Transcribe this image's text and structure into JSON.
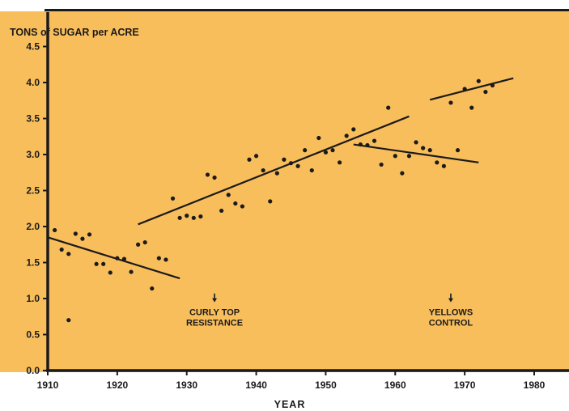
{
  "colors": {
    "plot_background": "#f9be5c",
    "ink": "#1a1a1a",
    "page": "#ffffff"
  },
  "chart_data": {
    "type": "scatter",
    "title": "",
    "xlabel": "YEAR",
    "ylabel": "TONS of SUGAR per ACRE",
    "xlim": [
      1910,
      1985
    ],
    "ylim": [
      0,
      4.8
    ],
    "xticks": [
      1910,
      1920,
      1930,
      1940,
      1950,
      1960,
      1970,
      1980
    ],
    "xtick_labels": [
      "1910",
      "1920",
      "1930",
      "1940",
      "1950",
      "1960",
      "1970",
      "1980"
    ],
    "yticks": [
      0,
      0.5,
      1.0,
      1.5,
      2.0,
      2.5,
      3.0,
      3.5,
      4.0,
      4.5
    ],
    "ytick_labels": [
      "0.0",
      "0.5",
      "1.0",
      "1.5",
      "2.0",
      "2.5",
      "3.0",
      "3.5",
      "4.0",
      "4.5"
    ],
    "grid": false,
    "series": [
      {
        "x": [
          1911,
          1912,
          1913,
          1913,
          1914,
          1915,
          1916,
          1917,
          1918,
          1919,
          1920,
          1921,
          1922,
          1923,
          1924,
          1925,
          1926,
          1927,
          1928,
          1929,
          1930,
          1931,
          1932,
          1933,
          1934,
          1935,
          1936,
          1937,
          1938,
          1939,
          1940,
          1941,
          1942,
          1943,
          1944,
          1945,
          1946,
          1947,
          1948,
          1949,
          1950,
          1951,
          1952,
          1953,
          1954,
          1955,
          1956,
          1957,
          1958,
          1959,
          1960,
          1961,
          1962,
          1963,
          1964,
          1965,
          1966,
          1967,
          1968,
          1969,
          1970,
          1971,
          1972,
          1973,
          1974
        ],
        "y": [
          1.95,
          1.68,
          1.62,
          0.7,
          1.9,
          1.83,
          1.89,
          1.48,
          1.48,
          1.36,
          1.56,
          1.55,
          1.37,
          1.75,
          1.78,
          1.14,
          1.56,
          1.54,
          2.39,
          2.12,
          2.15,
          2.12,
          2.14,
          2.72,
          2.68,
          2.22,
          2.44,
          2.32,
          2.28,
          2.93,
          2.98,
          2.78,
          2.35,
          2.74,
          2.93,
          2.88,
          2.84,
          3.06,
          2.78,
          3.23,
          3.03,
          3.06,
          2.89,
          3.26,
          3.35,
          3.14,
          3.13,
          3.19,
          2.86,
          3.65,
          2.98,
          2.74,
          2.98,
          3.17,
          3.09,
          3.06,
          2.89,
          2.84,
          3.72,
          3.06,
          3.91,
          3.65,
          4.02,
          3.87,
          3.96
        ]
      }
    ],
    "trend_lines": [
      {
        "x": [
          1910,
          1929
        ],
        "y": [
          1.85,
          1.28
        ]
      },
      {
        "x": [
          1923,
          1962
        ],
        "y": [
          2.03,
          3.53
        ]
      },
      {
        "x": [
          1954,
          1972
        ],
        "y": [
          3.14,
          2.89
        ]
      },
      {
        "x": [
          1965,
          1977
        ],
        "y": [
          3.76,
          4.06
        ]
      }
    ],
    "annotations": [
      {
        "lines": [
          "CURLY TOP",
          "RESISTANCE"
        ],
        "arrow_year": 1934
      },
      {
        "lines": [
          "YELLOWS",
          "CONTROL"
        ],
        "arrow_year": 1968
      }
    ]
  }
}
